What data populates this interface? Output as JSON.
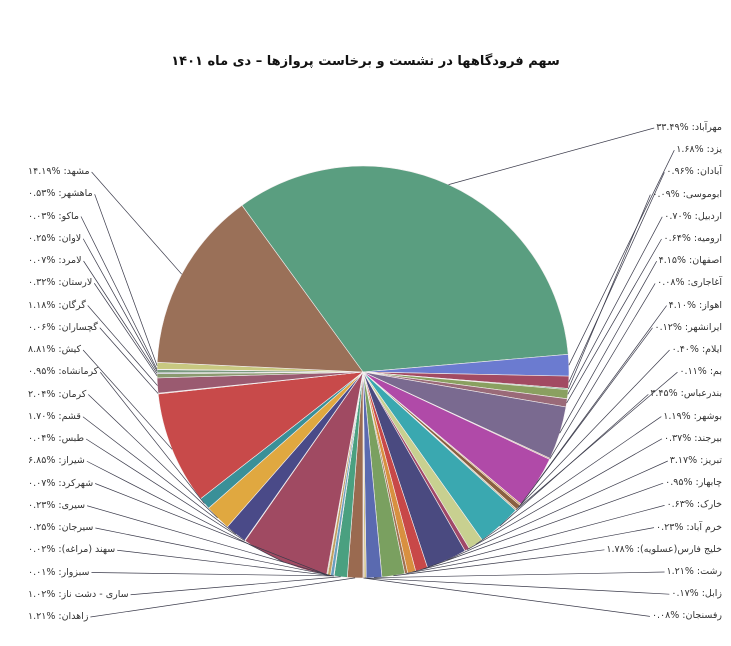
{
  "chart_data": {
    "type": "pie",
    "title": "سهم فرودگاهها در نشست و برخاست پروازها – دی ماه ۱۴۰۱",
    "unit": "%",
    "slices": [
      {
        "name": "مهرآباد",
        "value": 33.49,
        "label": "مهرآباد: %۳۳.۴۹",
        "color": "#5a9e80",
        "side": "right"
      },
      {
        "name": "یزد",
        "value": 1.68,
        "label": "یزد: %۱.۶۸",
        "color": "#6b7bd0",
        "side": "right"
      },
      {
        "name": "آبادان",
        "value": 0.96,
        "label": "آبادان: %۰.۹۶",
        "color": "#a24a62",
        "side": "right"
      },
      {
        "name": "ابوموسی",
        "value": 0.09,
        "label": "ابوموسی: %۰.۰۹",
        "color": "#5aa070",
        "side": "right"
      },
      {
        "name": "اردبیل",
        "value": 0.7,
        "label": "اردبیل: %۰.۷۰",
        "color": "#8aa060",
        "side": "right"
      },
      {
        "name": "ارومیه",
        "value": 0.64,
        "label": "ارومیه: %۰.۶۴",
        "color": "#9a6a78",
        "side": "right"
      },
      {
        "name": "اصفهان",
        "value": 4.15,
        "label": "اصفهان: %۴.۱۵",
        "color": "#7a6a90",
        "side": "right"
      },
      {
        "name": "آغاجاری",
        "value": 0.08,
        "label": "آغاجاری: %۰.۰۸",
        "color": "#c08060",
        "side": "right"
      },
      {
        "name": "اهواز",
        "value": 4.1,
        "label": "اهواز: %۴.۱۰",
        "color": "#b04aa8",
        "side": "right"
      },
      {
        "name": "ایرانشهر",
        "value": 0.12,
        "label": "ایرانشهر: %۰.۱۲",
        "color": "#d09050",
        "side": "right"
      },
      {
        "name": "ایلام",
        "value": 0.4,
        "label": "ایلام: %۰.۴۰",
        "color": "#8a6040",
        "side": "right"
      },
      {
        "name": "بم",
        "value": 0.11,
        "label": "بم: %۰.۱۱",
        "color": "#c0a070",
        "side": "right"
      },
      {
        "name": "بندرعباس",
        "value": 3.45,
        "label": "بندرعباس: %۳.۴۵",
        "color": "#3aa8b0",
        "side": "right"
      },
      {
        "name": "بوشهر",
        "value": 1.19,
        "label": "بوشهر: %۱.۱۹",
        "color": "#c8d090",
        "side": "right"
      },
      {
        "name": "بیرجند",
        "value": 0.37,
        "label": "بیرجند: %۰.۳۷",
        "color": "#a04868",
        "side": "right"
      },
      {
        "name": "تبریز",
        "value": 3.17,
        "label": "تبریز: %۳.۱۷",
        "color": "#4a4a80",
        "side": "right"
      },
      {
        "name": "چابهار",
        "value": 0.95,
        "label": "چابهار: %۰.۹۵",
        "color": "#c84848",
        "side": "right"
      },
      {
        "name": "خارک",
        "value": 0.63,
        "label": "خارک: %۰.۶۳",
        "color": "#d89040",
        "side": "right"
      },
      {
        "name": "خرم آباد",
        "value": 0.23,
        "label": "خرم آباد: %۰.۲۳",
        "color": "#a07050",
        "side": "right"
      },
      {
        "name": "خلیج فارس(عسلویه)",
        "value": 1.78,
        "label": "خلیج فارس(عسلویه): %۱.۷۸",
        "color": "#7aa060",
        "side": "right"
      },
      {
        "name": "رشت",
        "value": 1.21,
        "label": "رشت: %۱.۲۱",
        "color": "#5a6ab0",
        "side": "right"
      },
      {
        "name": "زابل",
        "value": 0.17,
        "label": "زابل: %۰.۱۷",
        "color": "#d0c080",
        "side": "right"
      },
      {
        "name": "رفسنجان",
        "value": 0.08,
        "label": "رفسنجان: %۰.۰۸",
        "color": "#c09070",
        "side": "right"
      },
      {
        "name": "زاهدان",
        "value": 1.21,
        "label": "زاهدان: %۱.۲۱",
        "color": "#9a6a50",
        "side": "left"
      },
      {
        "name": "ساری - دشت ناز",
        "value": 1.02,
        "label": "ساری - دشت ناز: %۱.۰۲",
        "color": "#4aa080",
        "side": "left"
      },
      {
        "name": "سبزوار",
        "value": 0.01,
        "label": "سبزوار: %۰.۰۱",
        "color": "#7080c0",
        "side": "left"
      },
      {
        "name": "سهند (مراغه)",
        "value": 0.02,
        "label": "سهند (مراغه): %۰.۰۲",
        "color": "#d0b070",
        "side": "left"
      },
      {
        "name": "سیرجان",
        "value": 0.25,
        "label": "سیرجان: %۰.۲۵",
        "color": "#6aa0c0",
        "side": "left"
      },
      {
        "name": "سیری",
        "value": 0.23,
        "label": "سیری: %۰.۲۳",
        "color": "#c0a060",
        "side": "left"
      },
      {
        "name": "شهرکرد",
        "value": 0.07,
        "label": "شهرکرد: %۰.۰۷",
        "color": "#b0b070",
        "side": "left"
      },
      {
        "name": "شیراز",
        "value": 6.85,
        "label": "شیراز: %۶.۸۵",
        "color": "#a04a62",
        "side": "left"
      },
      {
        "name": "طبس",
        "value": 0.04,
        "label": "طبس: %۰.۰۴",
        "color": "#8080a0",
        "side": "left"
      },
      {
        "name": "قشم",
        "value": 1.7,
        "label": "قشم: %۱.۷۰",
        "color": "#4a4a88",
        "side": "left"
      },
      {
        "name": "کرمان",
        "value": 2.04,
        "label": "کرمان: %۲.۰۴",
        "color": "#e0a840",
        "side": "left"
      },
      {
        "name": "کرمانشاه",
        "value": 0.95,
        "label": "کرمانشاه: %۰.۹۵",
        "color": "#3a9098",
        "side": "left"
      },
      {
        "name": "کیش",
        "value": 8.81,
        "label": "کیش: %۸.۸۱",
        "color": "#c84a4a",
        "side": "left"
      },
      {
        "name": "گچساران",
        "value": 0.06,
        "label": "گچساران: %۰.۰۶",
        "color": "#e08888",
        "side": "left"
      },
      {
        "name": "گرگان",
        "value": 1.18,
        "label": "گرگان: %۱.۱۸",
        "color": "#9a5a70",
        "side": "left"
      },
      {
        "name": "لارستان",
        "value": 0.32,
        "label": "لارستان: %۰.۳۲",
        "color": "#8a9a70",
        "side": "left"
      },
      {
        "name": "لامرد",
        "value": 0.07,
        "label": "لامرد: %۰.۰۷",
        "color": "#5a6aa0",
        "side": "left"
      },
      {
        "name": "لاوان",
        "value": 0.25,
        "label": "لاوان: %۰.۲۵",
        "color": "#7a9a80",
        "side": "left"
      },
      {
        "name": "ماکو",
        "value": 0.03,
        "label": "ماکو: %۰.۰۳",
        "color": "#a0a0c0",
        "side": "left"
      },
      {
        "name": "ماهشهر",
        "value": 0.53,
        "label": "ماهشهر: %۰.۵۳",
        "color": "#c8c880",
        "side": "left"
      },
      {
        "name": "مشهد",
        "value": 14.19,
        "label": "مشهد: %۱۴.۱۹",
        "color": "#9a7058",
        "side": "left"
      }
    ]
  }
}
